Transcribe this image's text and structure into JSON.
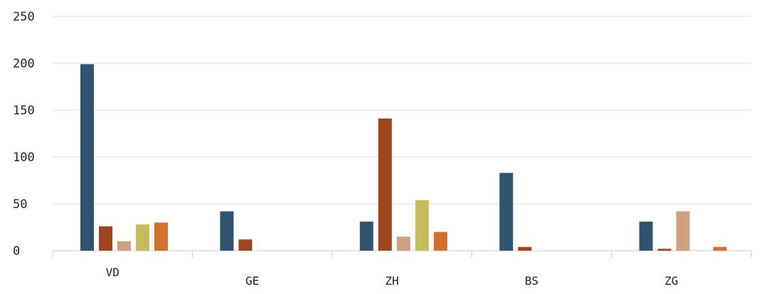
{
  "chart_data": {
    "type": "bar",
    "categories": [
      "VD",
      "GE",
      "ZH",
      "BS",
      "ZG"
    ],
    "series": [
      {
        "color": "#2f5470",
        "values": [
          199,
          42,
          31,
          83,
          31
        ]
      },
      {
        "color": "#a0461e",
        "values": [
          26,
          12,
          141,
          4,
          2
        ]
      },
      {
        "color": "#d0a080",
        "values": [
          10,
          0,
          15,
          0,
          42
        ]
      },
      {
        "color": "#c5bc5a",
        "values": [
          28,
          0,
          54,
          0,
          0
        ]
      },
      {
        "color": "#d2702e",
        "values": [
          30,
          0,
          20,
          0,
          4
        ]
      }
    ],
    "yticks": [
      "0",
      "50",
      "100",
      "150",
      "200",
      "250"
    ],
    "ylim": [
      0,
      250
    ],
    "grid": true,
    "legend": "none"
  }
}
